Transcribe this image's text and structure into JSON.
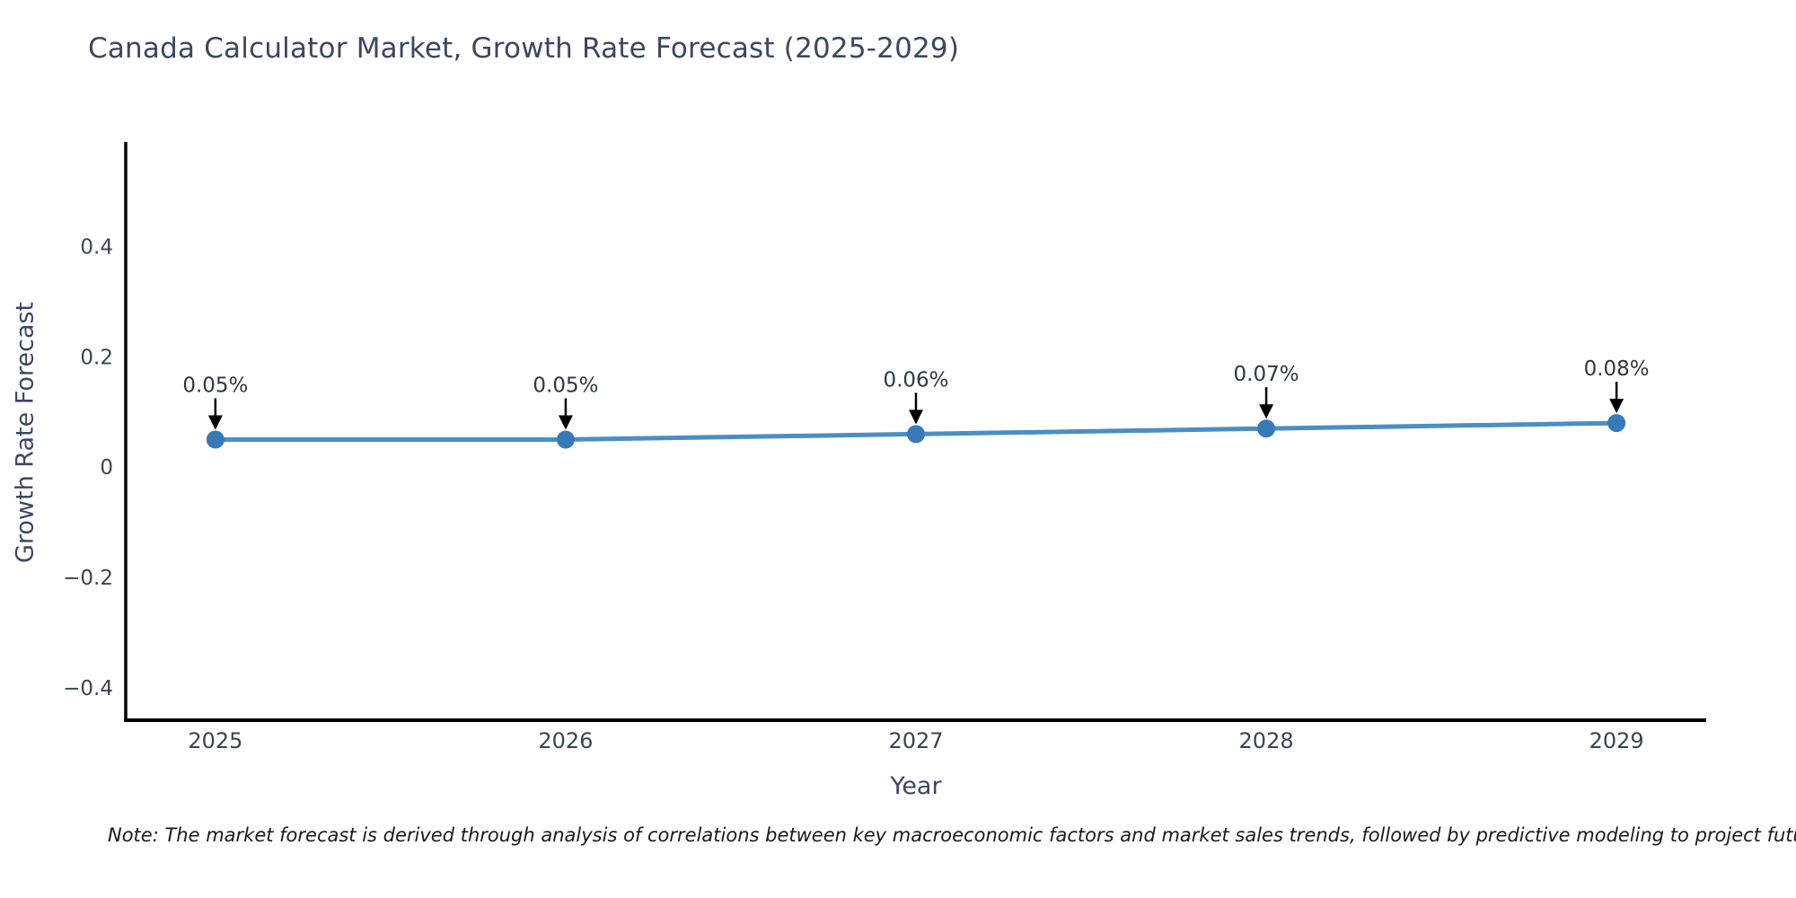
{
  "title": "Canada Calculator Market, Growth Rate Forecast (2025-2029)",
  "note": "Note: The market forecast is derived through analysis of correlations between key macroeconomic factors and market sales trends, followed by predictive modeling to project future sales.",
  "chart_data": {
    "type": "line",
    "title": "Canada Calculator Market, Growth Rate Forecast (2025-2029)",
    "xlabel": "Year",
    "ylabel": "Growth Rate Forecast",
    "categories": [
      2025,
      2026,
      2027,
      2028,
      2029
    ],
    "series": [
      {
        "name": "Growth Rate Forecast",
        "values": [
          0.05,
          0.05,
          0.06,
          0.07,
          0.08
        ],
        "point_labels": [
          "0.05%",
          "0.05%",
          "0.06%",
          "0.07%",
          "0.08%"
        ]
      }
    ],
    "xticks": [
      "2025",
      "2026",
      "2027",
      "2028",
      "2029"
    ],
    "yticks": {
      "values": [
        -0.4,
        -0.2,
        0,
        0.2,
        0.4
      ],
      "labels": [
        "−0.4",
        "−0.2",
        "0",
        "0.2",
        "0.4"
      ]
    },
    "ylim": [
      -0.459,
      0.59
    ],
    "xlim": [
      2024.744,
      2029.256
    ],
    "grid": false,
    "legend_position": "none",
    "annotation_style": "value label with downward arrow onto each marker",
    "colors": {
      "line": "#4a8ec5",
      "marker": "#3879ba",
      "arrow": "#000000",
      "axis": "#000000",
      "title_text": "#3d4663",
      "tick_text": "#3b4452",
      "note_text": "#1a1a1a",
      "background": "#ffffff"
    }
  }
}
